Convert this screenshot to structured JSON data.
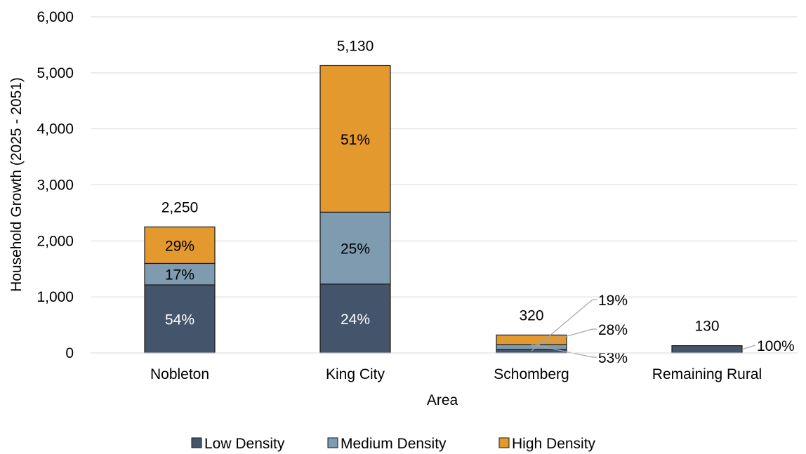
{
  "chart_data": {
    "type": "bar",
    "stacked": true,
    "xlabel": "Area",
    "ylabel": "Household Growth (2025 - 2051)",
    "ylim": [
      0,
      6000
    ],
    "yticks": [
      0,
      1000,
      2000,
      3000,
      4000,
      5000,
      6000
    ],
    "ytick_labels": [
      "0",
      "1,000",
      "2,000",
      "3,000",
      "4,000",
      "5,000",
      "6,000"
    ],
    "grid": true,
    "legend_position": "bottom",
    "categories": [
      "Nobleton",
      "King City",
      "Schomberg",
      "Remaining Rural"
    ],
    "series": [
      {
        "name": "Low Density",
        "color": "#44546a",
        "values": [
          1215,
          1230,
          61,
          130
        ],
        "labels": [
          "54%",
          "24%",
          "19%",
          "100%"
        ]
      },
      {
        "name": "Medium Density",
        "color": "#7f9bb0",
        "values": [
          383,
          1283,
          90,
          0
        ],
        "labels": [
          "17%",
          "25%",
          "28%",
          ""
        ]
      },
      {
        "name": "High Density",
        "color": "#e4992e",
        "values": [
          652,
          2617,
          169,
          0
        ],
        "labels": [
          "29%",
          "51%",
          "53%",
          ""
        ]
      }
    ],
    "totals": [
      2250,
      5130,
      320,
      130
    ],
    "total_labels": [
      "2,250",
      "5,130",
      "320",
      "130"
    ]
  }
}
